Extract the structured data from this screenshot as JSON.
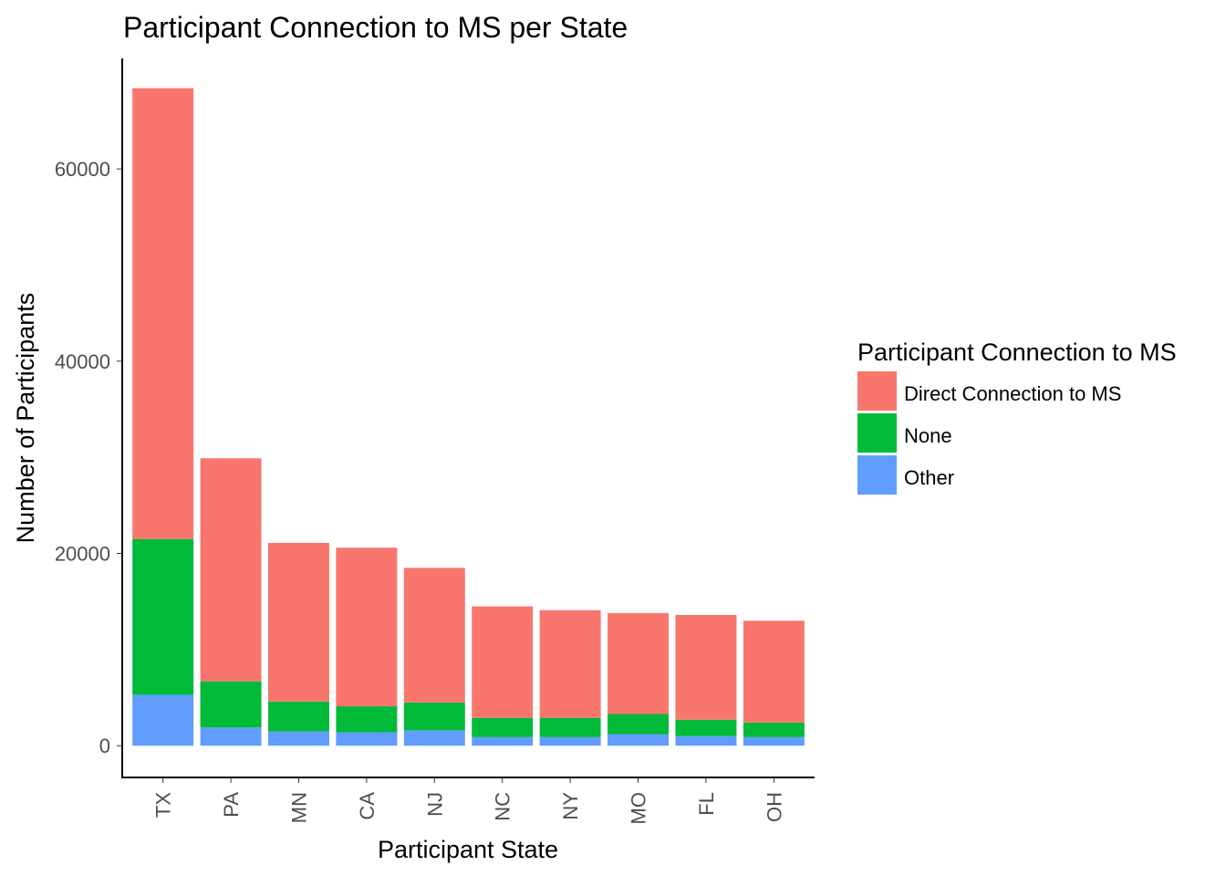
{
  "chart_data": {
    "type": "bar",
    "stacked": true,
    "title": "Participant Connection to MS per State",
    "xlabel": "Participant State",
    "ylabel": "Number of Participants",
    "categories": [
      "TX",
      "PA",
      "MN",
      "CA",
      "NJ",
      "NC",
      "NY",
      "MO",
      "FL",
      "OH"
    ],
    "series": [
      {
        "name": "Other",
        "color": "#619CFF",
        "values": [
          5300,
          1900,
          1500,
          1400,
          1600,
          900,
          900,
          1200,
          1000,
          900
        ]
      },
      {
        "name": "None",
        "color": "#00BA38",
        "values": [
          16200,
          4800,
          3100,
          2700,
          2900,
          2000,
          2000,
          2100,
          1700,
          1500
        ]
      },
      {
        "name": "Direct Connection to MS",
        "color": "#F8766D",
        "values": [
          46900,
          23200,
          16500,
          16500,
          14000,
          11600,
          11200,
          10500,
          10900,
          10600
        ]
      }
    ],
    "legend": {
      "title": "Participant Connection to MS",
      "position": "right",
      "entries": [
        {
          "label": "Direct Connection to MS",
          "color": "#F8766D"
        },
        {
          "label": "None",
          "color": "#00BA38"
        },
        {
          "label": "Other",
          "color": "#619CFF"
        }
      ]
    },
    "yticks": [
      "0",
      "20000",
      "40000",
      "60000"
    ],
    "ylim": [
      -3300,
      71500
    ],
    "grid": false
  }
}
